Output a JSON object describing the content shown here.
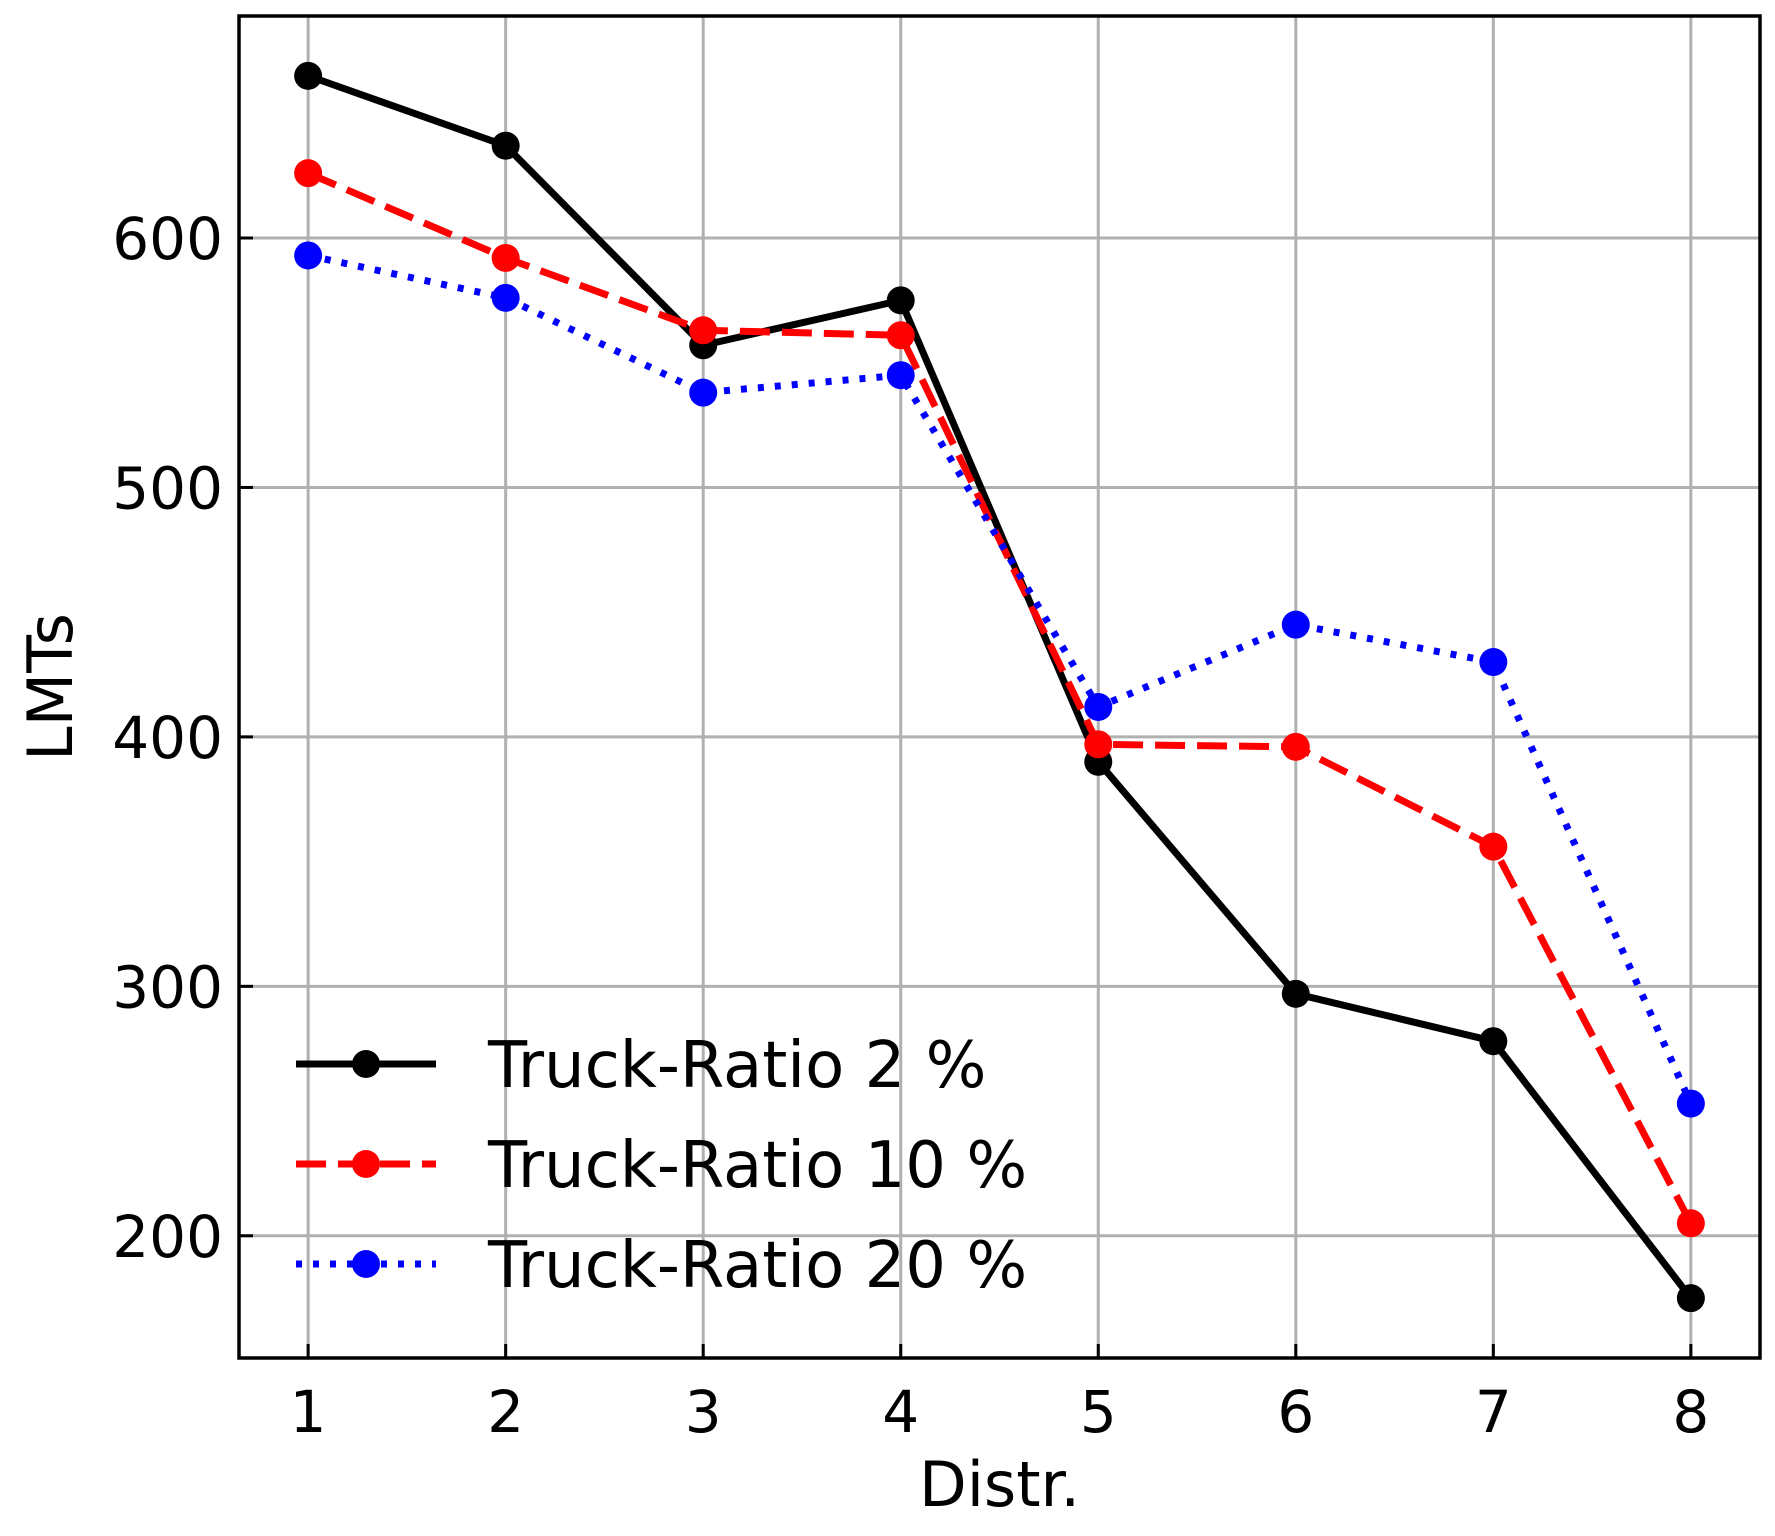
{
  "chart_data": {
    "type": "line",
    "xlabel": "Distr.",
    "ylabel": "LMTs",
    "x": [
      1,
      2,
      3,
      4,
      5,
      6,
      7,
      8
    ],
    "xlim": [
      0.65,
      8.35
    ],
    "ylim": [
      151,
      689
    ],
    "xticks": [
      "1",
      "2",
      "3",
      "4",
      "5",
      "6",
      "7",
      "8"
    ],
    "yticks": [
      200,
      300,
      400,
      500,
      600
    ],
    "grid": true,
    "legend_position": "bottom-left",
    "series": [
      {
        "name": "Truck-Ratio 2 %",
        "color": "#000000",
        "line_style": "solid",
        "values": [
          665,
          637,
          557,
          575,
          390,
          297,
          278,
          175
        ]
      },
      {
        "name": "Truck-Ratio 10 %",
        "color": "#ff0000",
        "line_style": "dashed",
        "values": [
          626,
          592,
          563,
          561,
          397,
          396,
          356,
          205
        ]
      },
      {
        "name": "Truck-Ratio 20 %",
        "color": "#0000ff",
        "line_style": "dotted",
        "values": [
          593,
          576,
          538,
          545,
          412,
          445,
          430,
          253
        ]
      }
    ]
  }
}
